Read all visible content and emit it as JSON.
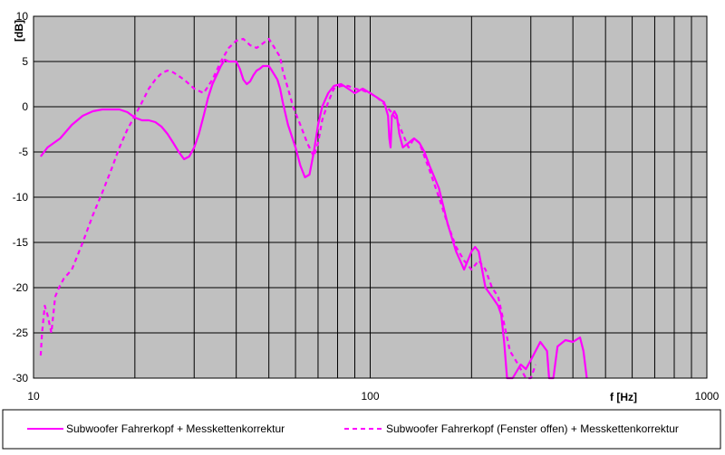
{
  "chart_data": {
    "type": "line",
    "x_scale": "log",
    "xlim": [
      10,
      1000
    ],
    "ylim": [
      -30,
      10
    ],
    "x_ticks": [
      {
        "value": 10,
        "label": "10"
      },
      {
        "value": 100,
        "label": "100"
      },
      {
        "value": 1000,
        "label": "1000"
      }
    ],
    "y_ticks": [
      {
        "value": 10,
        "label": "10"
      },
      {
        "value": 5,
        "label": "5"
      },
      {
        "value": 0,
        "label": "0"
      },
      {
        "value": -5,
        "label": "-5"
      },
      {
        "value": -10,
        "label": "-10"
      },
      {
        "value": -15,
        "label": "-15"
      },
      {
        "value": -20,
        "label": "-20"
      },
      {
        "value": -25,
        "label": "-25"
      },
      {
        "value": -30,
        "label": "-30"
      }
    ],
    "xlabel": "f [Hz]",
    "ylabel": "[dB]",
    "grid": true,
    "legend_position": "bottom",
    "colors": {
      "plot_bg": "#c0c0c0",
      "grid": "#000000",
      "series": "#ff00ff"
    },
    "series": [
      {
        "name": "Subwoofer Fahrerkopf + Messkettenkorrektur",
        "style": "solid",
        "points": [
          [
            10.5,
            -5.5
          ],
          [
            11,
            -4.5
          ],
          [
            12,
            -3.5
          ],
          [
            13,
            -2
          ],
          [
            14,
            -1
          ],
          [
            15,
            -0.5
          ],
          [
            16,
            -0.3
          ],
          [
            17,
            -0.3
          ],
          [
            18,
            -0.3
          ],
          [
            19,
            -0.6
          ],
          [
            20,
            -1.2
          ],
          [
            21,
            -1.5
          ],
          [
            22,
            -1.5
          ],
          [
            23,
            -1.7
          ],
          [
            24,
            -2.2
          ],
          [
            25,
            -3
          ],
          [
            26,
            -4
          ],
          [
            27,
            -5
          ],
          [
            28,
            -5.8
          ],
          [
            29,
            -5.5
          ],
          [
            30,
            -4.5
          ],
          [
            31,
            -3
          ],
          [
            32,
            -1
          ],
          [
            33,
            1
          ],
          [
            34,
            2.5
          ],
          [
            35,
            3.5
          ],
          [
            36,
            4.5
          ],
          [
            37,
            5.2
          ],
          [
            38,
            5
          ],
          [
            40,
            5
          ],
          [
            41,
            4.2
          ],
          [
            42,
            3
          ],
          [
            43,
            2.5
          ],
          [
            44,
            2.8
          ],
          [
            45,
            3.5
          ],
          [
            46,
            4
          ],
          [
            47,
            4.2
          ],
          [
            48,
            4.5
          ],
          [
            50,
            4.5
          ],
          [
            51,
            4
          ],
          [
            52,
            3.5
          ],
          [
            53,
            3
          ],
          [
            54,
            2
          ],
          [
            55,
            0.5
          ],
          [
            57,
            -2
          ],
          [
            60,
            -4.5
          ],
          [
            62,
            -6.5
          ],
          [
            64,
            -7.8
          ],
          [
            66,
            -7.5
          ],
          [
            68,
            -5
          ],
          [
            70,
            -2
          ],
          [
            72,
            0
          ],
          [
            75,
            1.5
          ],
          [
            78,
            2.3
          ],
          [
            82,
            2.5
          ],
          [
            86,
            2
          ],
          [
            90,
            1.5
          ],
          [
            95,
            2
          ],
          [
            100,
            1.5
          ],
          [
            105,
            1
          ],
          [
            110,
            0.5
          ],
          [
            113,
            -1
          ],
          [
            114,
            -3.5
          ],
          [
            115,
            -4.5
          ],
          [
            116,
            -1
          ],
          [
            118,
            -0.5
          ],
          [
            120,
            -1
          ],
          [
            122,
            -3
          ],
          [
            125,
            -4.5
          ],
          [
            130,
            -4
          ],
          [
            135,
            -3.5
          ],
          [
            140,
            -4
          ],
          [
            145,
            -5
          ],
          [
            150,
            -6.5
          ],
          [
            160,
            -9
          ],
          [
            170,
            -13
          ],
          [
            180,
            -16
          ],
          [
            190,
            -18
          ],
          [
            195,
            -17
          ],
          [
            200,
            -16
          ],
          [
            205,
            -15.5
          ],
          [
            210,
            -16
          ],
          [
            220,
            -20
          ],
          [
            230,
            -21
          ],
          [
            240,
            -22
          ],
          [
            245,
            -23
          ],
          [
            250,
            -26
          ],
          [
            255,
            -30
          ],
          [
            265,
            -30
          ],
          [
            280,
            -28.5
          ],
          [
            290,
            -29
          ],
          [
            300,
            -28
          ],
          [
            310,
            -27
          ],
          [
            320,
            -26
          ],
          [
            335,
            -27
          ],
          [
            340,
            -30
          ],
          [
            350,
            -30
          ],
          [
            360,
            -26.5
          ],
          [
            380,
            -25.8
          ],
          [
            400,
            -26
          ],
          [
            420,
            -25.5
          ],
          [
            430,
            -27
          ],
          [
            440,
            -30
          ]
        ]
      },
      {
        "name": "Subwoofer Fahrerkopf (Fenster offen) + Messkettenkorrektur",
        "style": "dashed",
        "points": [
          [
            10.5,
            -27.5
          ],
          [
            10.6,
            -25
          ],
          [
            10.8,
            -22
          ],
          [
            11,
            -23
          ],
          [
            11.3,
            -25
          ],
          [
            11.6,
            -21
          ],
          [
            11.9,
            -20
          ],
          [
            12.3,
            -19
          ],
          [
            13,
            -18
          ],
          [
            14,
            -15
          ],
          [
            15,
            -12
          ],
          [
            16,
            -9.5
          ],
          [
            17,
            -7
          ],
          [
            18,
            -4.5
          ],
          [
            19,
            -2.5
          ],
          [
            20,
            -1
          ],
          [
            21,
            0.5
          ],
          [
            22,
            2
          ],
          [
            23,
            3
          ],
          [
            24,
            3.7
          ],
          [
            25,
            4
          ],
          [
            26,
            3.8
          ],
          [
            28,
            3
          ],
          [
            30,
            2
          ],
          [
            32,
            1.5
          ],
          [
            34,
            3
          ],
          [
            36,
            5
          ],
          [
            38,
            6.5
          ],
          [
            40,
            7.3
          ],
          [
            42,
            7.5
          ],
          [
            44,
            6.8
          ],
          [
            46,
            6.5
          ],
          [
            48,
            7
          ],
          [
            50,
            7.5
          ],
          [
            52,
            6.5
          ],
          [
            54,
            5.5
          ],
          [
            55,
            4
          ],
          [
            57,
            2
          ],
          [
            59,
            0
          ],
          [
            62,
            -2
          ],
          [
            65,
            -4
          ],
          [
            68,
            -5.5
          ],
          [
            70,
            -4
          ],
          [
            72,
            -1.5
          ],
          [
            75,
            0.5
          ],
          [
            78,
            2
          ],
          [
            82,
            2.3
          ],
          [
            86,
            2.3
          ],
          [
            90,
            2
          ],
          [
            95,
            1.8
          ],
          [
            100,
            1.5
          ],
          [
            105,
            1
          ],
          [
            110,
            0.3
          ],
          [
            115,
            -0.5
          ],
          [
            120,
            -1.5
          ],
          [
            125,
            -3
          ],
          [
            130,
            -4.5
          ],
          [
            135,
            -3.5
          ],
          [
            140,
            -4
          ],
          [
            150,
            -7
          ],
          [
            160,
            -10
          ],
          [
            170,
            -13
          ],
          [
            180,
            -15.5
          ],
          [
            190,
            -17
          ],
          [
            200,
            -18
          ],
          [
            210,
            -17
          ],
          [
            220,
            -18
          ],
          [
            230,
            -20
          ],
          [
            240,
            -21
          ],
          [
            250,
            -24
          ],
          [
            260,
            -27
          ],
          [
            270,
            -28
          ],
          [
            280,
            -29
          ],
          [
            290,
            -30
          ],
          [
            300,
            -30
          ],
          [
            310,
            -28.5
          ]
        ]
      }
    ]
  }
}
